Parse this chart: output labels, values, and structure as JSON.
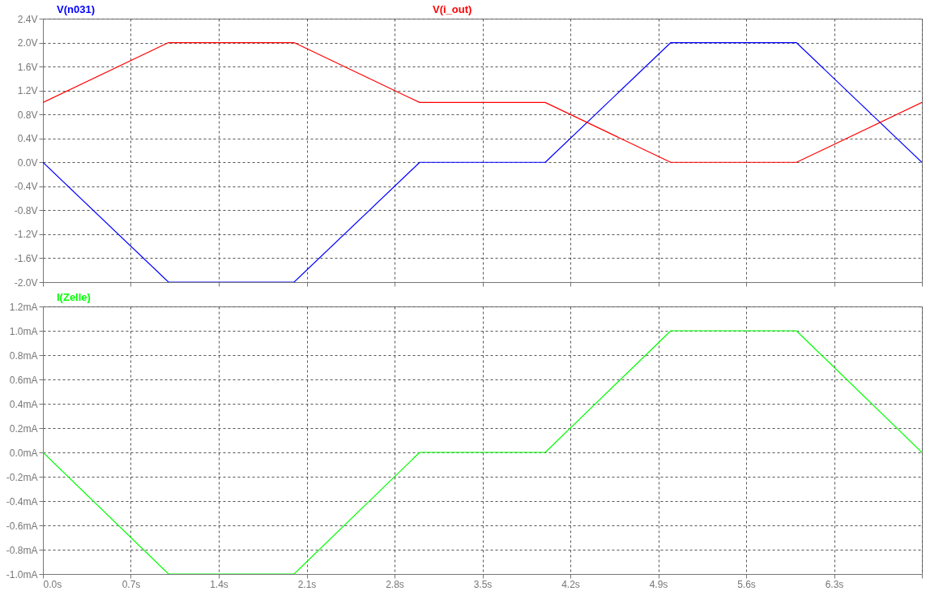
{
  "chart_data": [
    {
      "type": "line",
      "x": [
        0,
        1,
        2,
        3,
        4,
        5,
        6,
        7
      ],
      "series": [
        {
          "name": "V(n031)",
          "color": "#0000ff",
          "values": [
            0,
            -2,
            -2,
            0,
            0,
            2,
            2,
            0
          ]
        },
        {
          "name": "V(i_out)",
          "color": "#ff0000",
          "values": [
            1,
            2,
            2,
            1,
            1,
            0,
            0,
            1
          ]
        }
      ],
      "xlim": [
        0,
        7
      ],
      "xticks": [
        0,
        0.7,
        1.4,
        2.1,
        2.8,
        3.5,
        4.2,
        4.9,
        5.6,
        6.3,
        7
      ],
      "ylim": [
        -2,
        2.4
      ],
      "yticks": [
        {
          "value": -2,
          "label": "-2.0V"
        },
        {
          "value": -1.6,
          "label": "-1.6V"
        },
        {
          "value": -1.2,
          "label": "-1.2V"
        },
        {
          "value": -0.8,
          "label": "-0.8V"
        },
        {
          "value": -0.4,
          "label": "-0.4V"
        },
        {
          "value": 0,
          "label": "0.0V"
        },
        {
          "value": 0.4,
          "label": "0.4V"
        },
        {
          "value": 0.8,
          "label": "0.8V"
        },
        {
          "value": 1.2,
          "label": "1.2V"
        },
        {
          "value": 1.6,
          "label": "1.6V"
        },
        {
          "value": 2,
          "label": "2.0V"
        },
        {
          "value": 2.4,
          "label": "2.4V"
        }
      ],
      "grid": true,
      "legend": "top",
      "tick_labels": "y"
    },
    {
      "type": "line",
      "x": [
        0,
        1,
        2,
        3,
        4,
        5,
        6,
        7
      ],
      "series": [
        {
          "name": "I(Zelle)",
          "color": "#00ff00",
          "values": [
            0,
            -1,
            -1,
            0,
            0,
            1,
            1,
            0
          ]
        }
      ],
      "xlim": [
        0,
        7
      ],
      "xticks": [
        {
          "value": 0,
          "label": "0.0s"
        },
        {
          "value": 0.7,
          "label": "0.7s"
        },
        {
          "value": 1.4,
          "label": "1.4s"
        },
        {
          "value": 2.1,
          "label": "2.1s"
        },
        {
          "value": 2.8,
          "label": "2.8s"
        },
        {
          "value": 3.5,
          "label": "3.5s"
        },
        {
          "value": 4.2,
          "label": "4.2s"
        },
        {
          "value": 4.9,
          "label": "4.9s"
        },
        {
          "value": 5.6,
          "label": "5.6s"
        },
        {
          "value": 6.3,
          "label": "6.3s"
        },
        {
          "value": 7,
          "label": null
        }
      ],
      "ylim": [
        -1,
        1.2
      ],
      "yticks": [
        {
          "value": -1,
          "label": "-1.0mA"
        },
        {
          "value": -0.8,
          "label": "-0.8mA"
        },
        {
          "value": -0.6,
          "label": "-0.6mA"
        },
        {
          "value": -0.4,
          "label": "-0.4mA"
        },
        {
          "value": -0.2,
          "label": "-0.2mA"
        },
        {
          "value": 0,
          "label": "0.0mA"
        },
        {
          "value": 0.2,
          "label": "0.2mA"
        },
        {
          "value": 0.4,
          "label": "0.4mA"
        },
        {
          "value": 0.6,
          "label": "0.6mA"
        },
        {
          "value": 0.8,
          "label": "0.8mA"
        },
        {
          "value": 1,
          "label": "1.0mA"
        },
        {
          "value": 1.2,
          "label": "1.2mA"
        }
      ],
      "grid": true,
      "legend": "top"
    }
  ]
}
